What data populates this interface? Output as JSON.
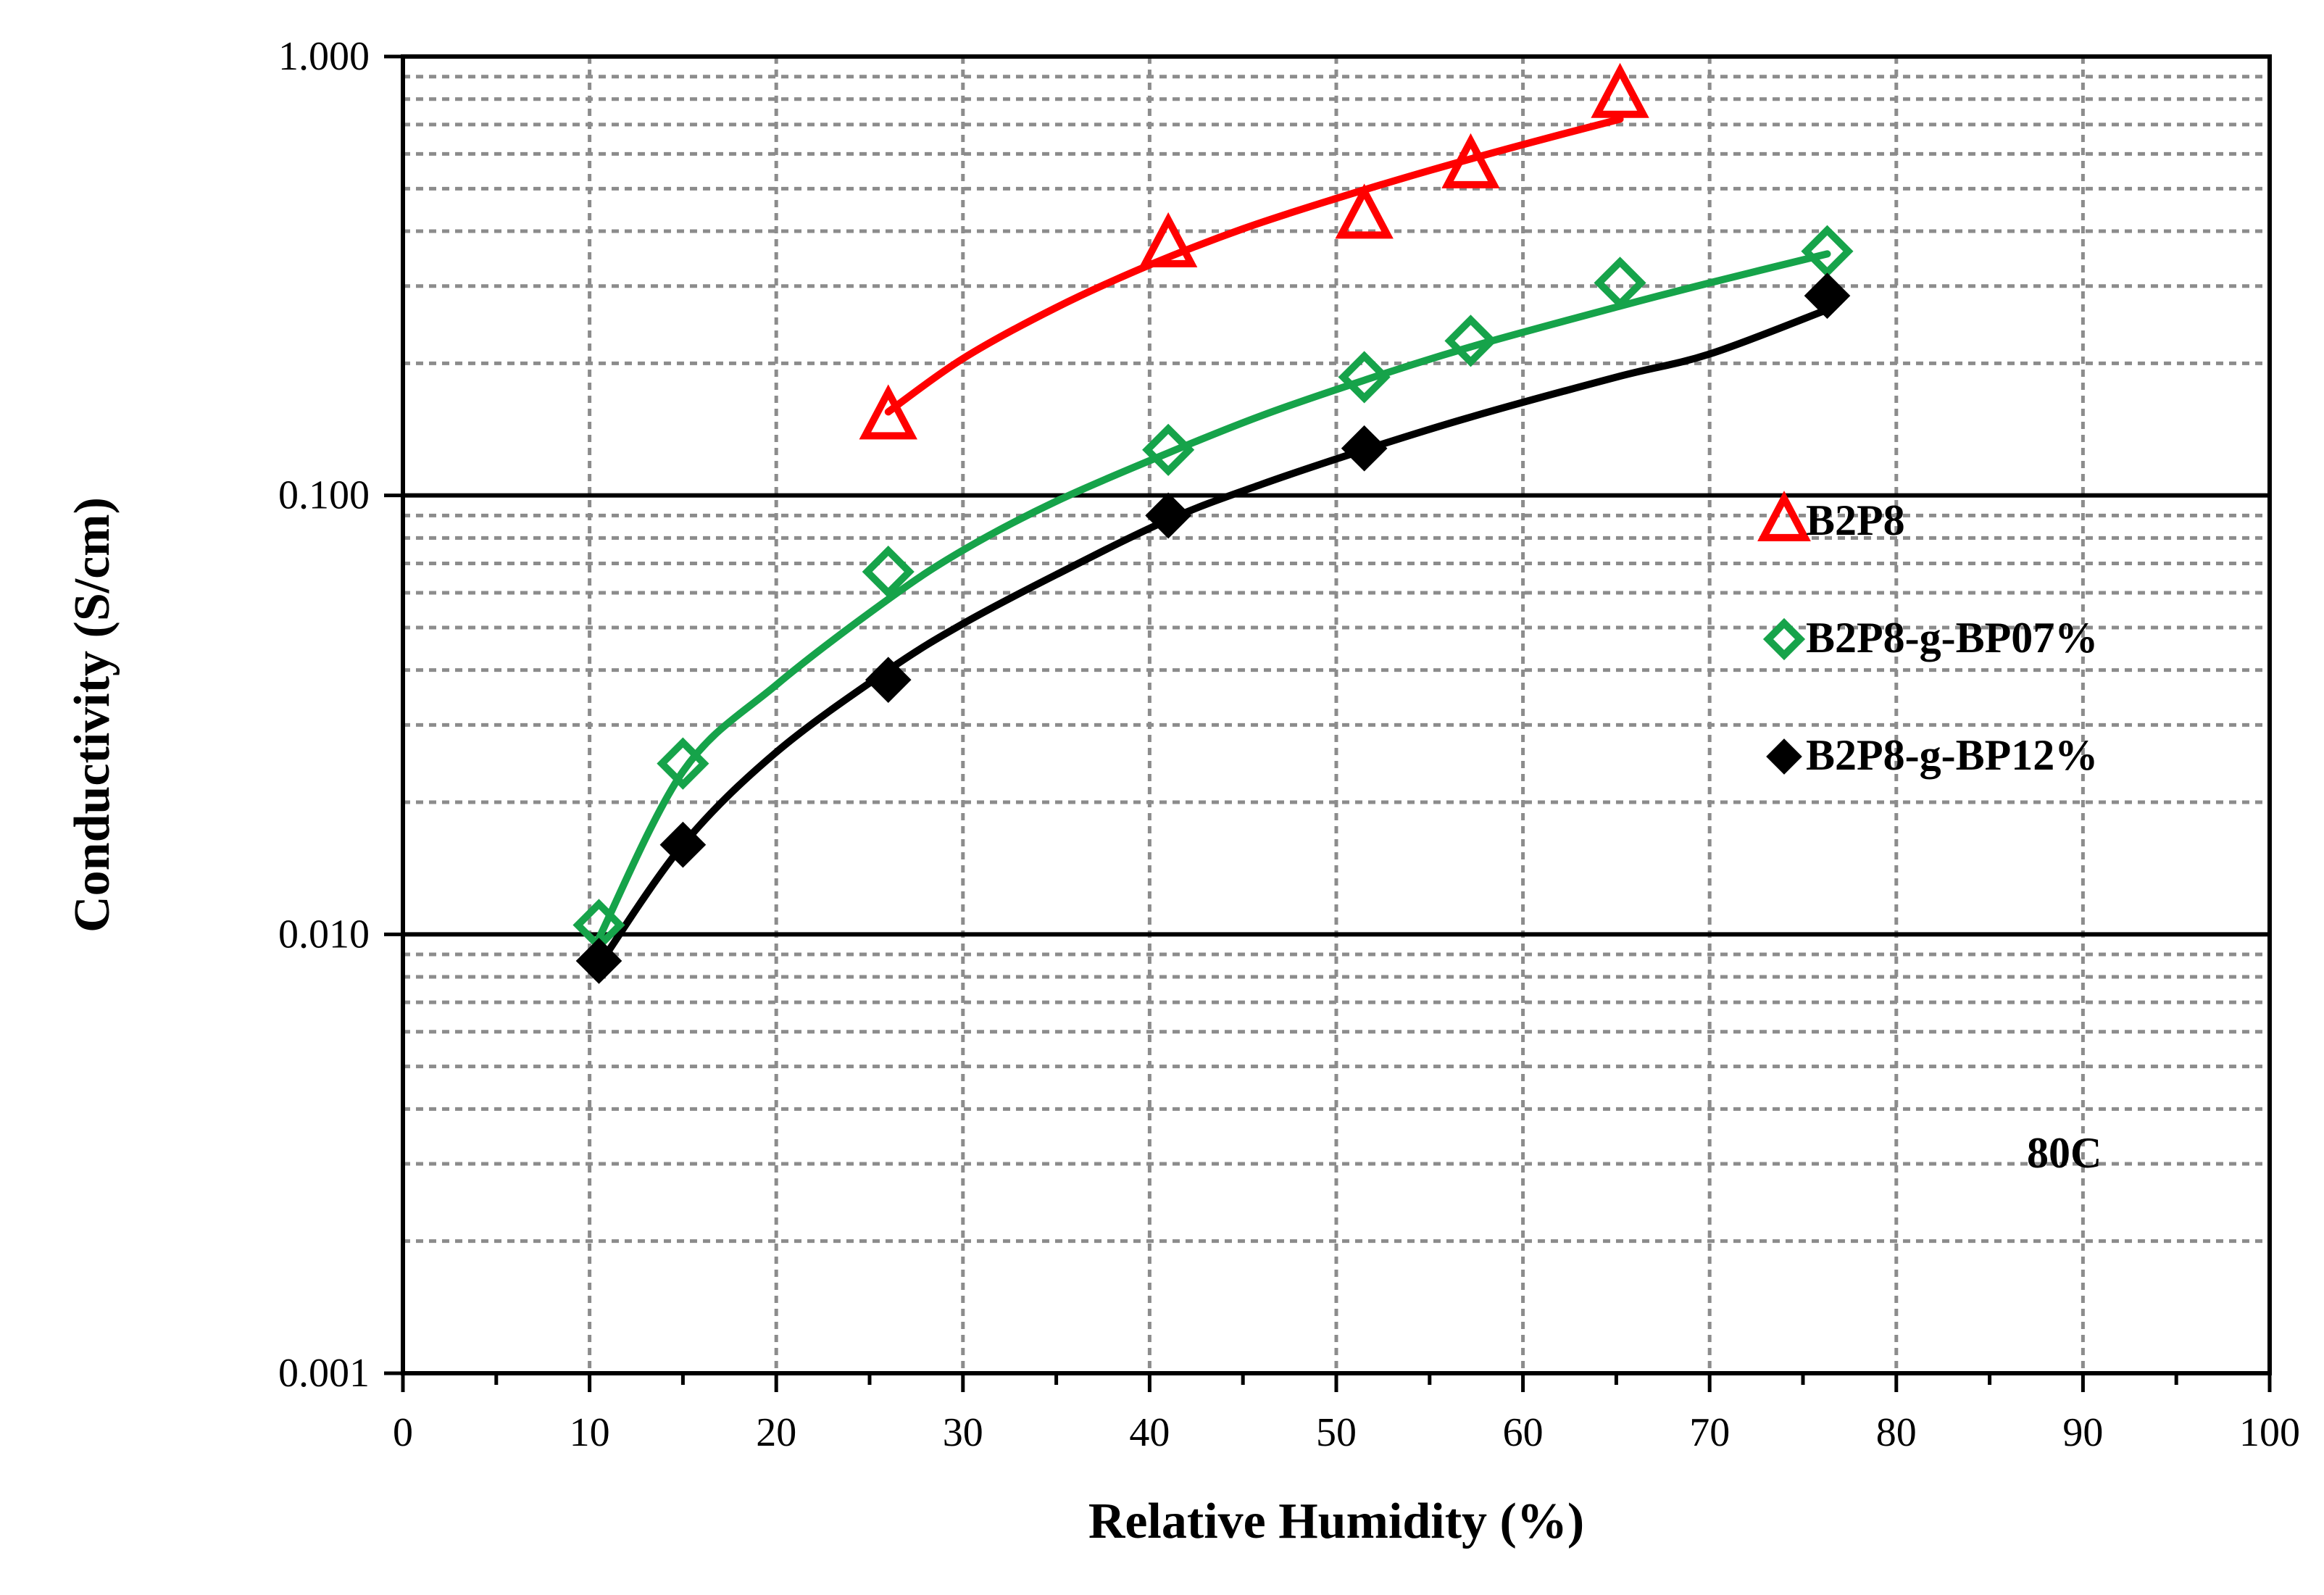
{
  "chart_data": {
    "type": "scatter",
    "title": "",
    "xlabel": "Relative Humidity (%)",
    "ylabel": "Conductivity (S/cm)",
    "xlim": [
      0,
      100
    ],
    "ylim": [
      0.001,
      1.0
    ],
    "y_scale": "log",
    "x_ticks": [
      "0",
      "10",
      "20",
      "30",
      "40",
      "50",
      "60",
      "70",
      "80",
      "90",
      "100"
    ],
    "y_ticks": [
      "0.001",
      "0.010",
      "0.100",
      "1.000"
    ],
    "grid": true,
    "legend_position": "right",
    "annotation": "80C",
    "series": [
      {
        "name": "B2P8",
        "color": "#ff0000",
        "marker": "open-triangle",
        "x": [
          26,
          41,
          51.5,
          57.2,
          65.2
        ],
        "y": [
          0.15,
          0.37,
          0.43,
          0.56,
          0.81
        ],
        "fit": {
          "x": [
            26,
            30,
            35,
            40,
            45,
            50,
            55,
            60,
            65.2
          ],
          "y": [
            0.155,
            0.205,
            0.268,
            0.335,
            0.405,
            0.475,
            0.55,
            0.63,
            0.72
          ]
        }
      },
      {
        "name": "B2P8-g-BP07%",
        "color": "#16a34a",
        "marker": "open-diamond",
        "x": [
          10.5,
          15,
          26,
          41,
          51.5,
          57.2,
          65.2,
          76.3
        ],
        "y": [
          0.0105,
          0.0245,
          0.067,
          0.127,
          0.186,
          0.225,
          0.305,
          0.36
        ],
        "fit": {
          "x": [
            10.5,
            15,
            20,
            26,
            30,
            35,
            41,
            46,
            51.5,
            57.2,
            65.2,
            70,
            76.3
          ],
          "y": [
            0.0098,
            0.0235,
            0.037,
            0.058,
            0.075,
            0.097,
            0.125,
            0.152,
            0.183,
            0.218,
            0.27,
            0.305,
            0.355
          ]
        }
      },
      {
        "name": "B2P8-g-BP12%",
        "color": "#000000",
        "marker": "filled-diamond",
        "x": [
          10.5,
          15,
          26,
          41,
          51.5,
          76.3
        ],
        "y": [
          0.0087,
          0.016,
          0.038,
          0.09,
          0.128,
          0.285
        ],
        "fit": {
          "x": [
            10.5,
            15,
            20,
            26,
            30,
            35,
            41,
            46,
            51.5,
            57,
            65,
            70,
            76.3
          ],
          "y": [
            0.0085,
            0.016,
            0.026,
            0.04,
            0.051,
            0.066,
            0.088,
            0.106,
            0.127,
            0.15,
            0.186,
            0.21,
            0.265
          ]
        }
      }
    ]
  }
}
